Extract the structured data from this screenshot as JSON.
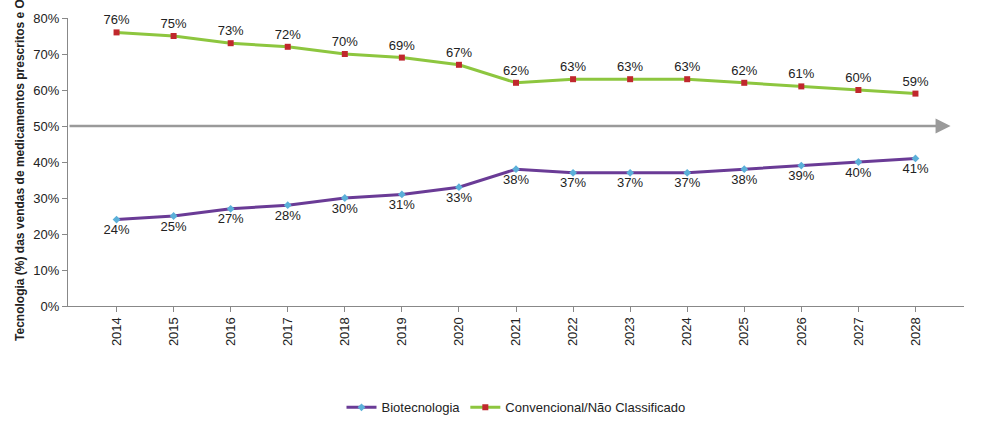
{
  "chart_data": {
    "type": "line",
    "y_label": "Tecnologia (%) das vendas de medicamentos prescritos e OTC",
    "categories": [
      "2014",
      "2015",
      "2016",
      "2017",
      "2018",
      "2019",
      "2020",
      "2021",
      "2022",
      "2023",
      "2024",
      "2025",
      "2026",
      "2027",
      "2028"
    ],
    "series": [
      {
        "name": "Biotecnologia",
        "color": "#6a3b96",
        "marker": "diamond",
        "values": [
          24,
          25,
          27,
          28,
          30,
          31,
          33,
          38,
          37,
          37,
          37,
          38,
          39,
          40,
          41
        ],
        "value_labels": [
          "24%",
          "25%",
          "27%",
          "28%",
          "30%",
          "31%",
          "33%",
          "38%",
          "37%",
          "37%",
          "37%",
          "38%",
          "39%",
          "40%",
          "41%"
        ]
      },
      {
        "name": "Convencional/Não Classificado",
        "color": "#8dc63f",
        "marker": "square",
        "values": [
          76,
          75,
          73,
          72,
          70,
          69,
          67,
          62,
          63,
          63,
          63,
          62,
          61,
          60,
          59
        ],
        "value_labels": [
          "76%",
          "75%",
          "73%",
          "72%",
          "70%",
          "69%",
          "67%",
          "62%",
          "63%",
          "63%",
          "63%",
          "62%",
          "61%",
          "60%",
          "59%"
        ]
      }
    ],
    "ylim": [
      0,
      80
    ],
    "yticks": [
      {
        "value": 0,
        "label": "0%"
      },
      {
        "value": 10,
        "label": "10%"
      },
      {
        "value": 20,
        "label": "20%"
      },
      {
        "value": 30,
        "label": "30%"
      },
      {
        "value": 40,
        "label": "40%"
      },
      {
        "value": 50,
        "label": "50%"
      },
      {
        "value": 60,
        "label": "60%"
      },
      {
        "value": 70,
        "label": "70%"
      },
      {
        "value": 80,
        "label": "80%"
      }
    ],
    "grid": false,
    "legend": "bottom",
    "data_labels": true
  }
}
